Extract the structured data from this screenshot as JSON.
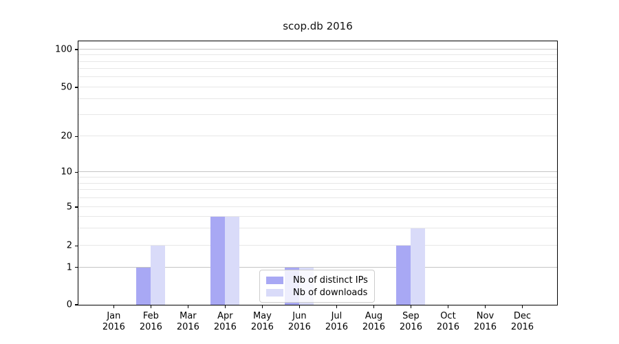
{
  "chart_data": {
    "type": "bar",
    "title": "scop.db 2016",
    "year": "2016",
    "months": [
      "Jan",
      "Feb",
      "Mar",
      "Apr",
      "May",
      "Jun",
      "Jul",
      "Aug",
      "Sep",
      "Oct",
      "Nov",
      "Dec"
    ],
    "categories": [
      "Jan 2016",
      "Feb 2016",
      "Mar 2016",
      "Apr 2016",
      "May 2016",
      "Jun 2016",
      "Jul 2016",
      "Aug 2016",
      "Sep 2016",
      "Oct 2016",
      "Nov 2016",
      "Dec 2016"
    ],
    "series": [
      {
        "name": "Nb of distinct IPs",
        "color": "#a8a8f4",
        "values": [
          0,
          1,
          0,
          4,
          0,
          1,
          0,
          0,
          2,
          0,
          0,
          0
        ]
      },
      {
        "name": "Nb of downloads",
        "color": "#d9dbf9",
        "values": [
          0,
          2,
          0,
          4,
          0,
          1,
          0,
          0,
          3,
          0,
          0,
          0
        ]
      }
    ],
    "xlabel": "",
    "ylabel": "",
    "yscale": "log above 1, linear 0-1",
    "yticks": [
      0,
      1,
      2,
      5,
      10,
      20,
      50,
      100
    ],
    "minor_gridline_values": [
      3,
      4,
      6,
      7,
      8,
      9,
      30,
      40,
      60,
      70,
      80,
      90
    ],
    "axis_calibration": [
      {
        "value": 0,
        "frac": 0.0
      },
      {
        "value": 1,
        "frac": 0.1418
      },
      {
        "value": 2,
        "frac": 0.2237
      },
      {
        "value": 5,
        "frac": 0.3706
      },
      {
        "value": 10,
        "frac": 0.5033
      },
      {
        "value": 20,
        "frac": 0.6385
      },
      {
        "value": 50,
        "frac": 0.8257
      },
      {
        "value": 100,
        "frac": 0.9688
      }
    ],
    "grid": true,
    "legend": {
      "entries": [
        "Nb of distinct IPs",
        "Nb of downloads"
      ],
      "position": "lower-center"
    },
    "colors": {
      "spine": "#000000",
      "grid_decade": "#c4c4c4",
      "grid_light": "#e7e7e7",
      "text": "#000000"
    }
  }
}
